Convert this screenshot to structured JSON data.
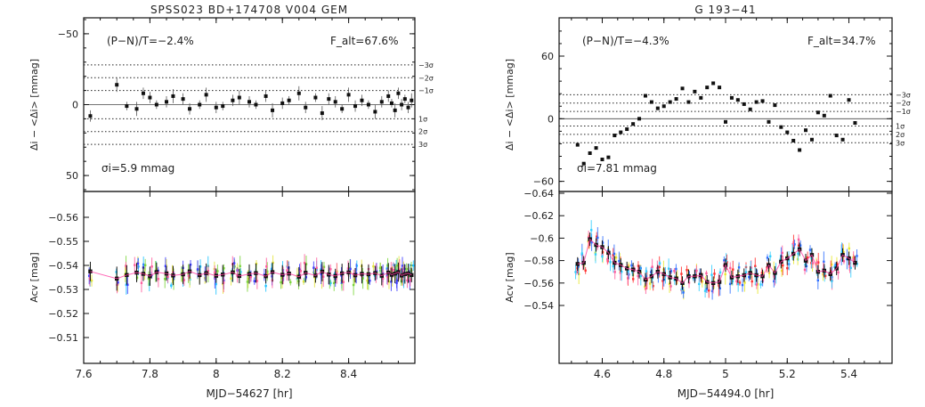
{
  "chart_data": [
    {
      "type": "scatter",
      "title": "SPSS023 BD+174708    V004    GEM",
      "top": {
        "ylabel": "Δi − <Δi> [mmag]",
        "ylim": [
          60,
          -60
        ],
        "yticks": [
          -50,
          0,
          50
        ],
        "ytick_labels": [
          "−50",
          "0",
          "50"
        ],
        "annotation_left": "(P−N)/T=−2.4%",
        "annotation_right": "F_alt=67.6%",
        "sigma_text": "σi=5.9 mmag",
        "sigma_levels": [
          {
            "label": "3σ",
            "value": 28
          },
          {
            "label": "2σ",
            "value": 19
          },
          {
            "label": "1σ",
            "value": 10
          },
          {
            "label": "−1σ",
            "value": -10
          },
          {
            "label": "−2σ",
            "value": -19
          },
          {
            "label": "−3σ",
            "value": -28
          }
        ],
        "values": [
          8,
          -14,
          1,
          3,
          -8,
          -5,
          0,
          -2,
          -6,
          -4,
          3,
          0,
          -7,
          2,
          1,
          -3,
          -5,
          -2,
          0,
          -6,
          4,
          -1,
          -3,
          -8,
          2,
          -5,
          6,
          -4,
          -2,
          3,
          -7,
          1,
          -3,
          0,
          5,
          -2,
          -6,
          -1,
          4,
          -8,
          0,
          -4,
          2,
          -3
        ],
        "errors": [
          4,
          5,
          3,
          5,
          4,
          4,
          3,
          4,
          5,
          4,
          4,
          3,
          5,
          4,
          3,
          4,
          5,
          4,
          3,
          4,
          5,
          4,
          3,
          5,
          4,
          3,
          5,
          4,
          4,
          3,
          5,
          4,
          4,
          3,
          5,
          4,
          4,
          3,
          5,
          4,
          4,
          3,
          4,
          5
        ]
      },
      "bottom": {
        "ylabel": "Acv [mag]",
        "ylim": [
          -0.5,
          -0.57
        ],
        "yticks": [
          -0.56,
          -0.55,
          -0.54,
          -0.53,
          -0.52,
          -0.51
        ],
        "ytick_labels": [
          "−0.56",
          "−0.55",
          "−0.54",
          "−0.53",
          "−0.52",
          "−0.51"
        ],
        "x": [
          7.62,
          7.7,
          7.73,
          7.76,
          7.78,
          7.8,
          7.82,
          7.85,
          7.87,
          7.9,
          7.92,
          7.95,
          7.97,
          8.0,
          8.02,
          8.05,
          8.07,
          8.1,
          8.12,
          8.15,
          8.17,
          8.2,
          8.22,
          8.25,
          8.27,
          8.3,
          8.32,
          8.34,
          8.36,
          8.38,
          8.4,
          8.42,
          8.44,
          8.46,
          8.48,
          8.5,
          8.52,
          8.53,
          8.54,
          8.55,
          8.56,
          8.57,
          8.58,
          8.59
        ],
        "values": [
          -0.5375,
          -0.5345,
          -0.536,
          -0.537,
          -0.5365,
          -0.5355,
          -0.5372,
          -0.5366,
          -0.5358,
          -0.5363,
          -0.5375,
          -0.536,
          -0.5368,
          -0.5357,
          -0.5362,
          -0.5371,
          -0.5356,
          -0.5364,
          -0.5368,
          -0.5355,
          -0.5372,
          -0.5361,
          -0.5366,
          -0.5353,
          -0.5369,
          -0.5358,
          -0.5374,
          -0.5362,
          -0.5356,
          -0.5367,
          -0.5371,
          -0.5359,
          -0.5365,
          -0.5363,
          -0.5368,
          -0.5357,
          -0.537,
          -0.5361,
          -0.5366,
          -0.5372,
          -0.5358,
          -0.5364,
          -0.5367,
          -0.536
        ],
        "errors": [
          0.004,
          0.005,
          0.004,
          0.004,
          0.003,
          0.004,
          0.004,
          0.003,
          0.004,
          0.004,
          0.003,
          0.004,
          0.004,
          0.003,
          0.004,
          0.004,
          0.003,
          0.004,
          0.004,
          0.003,
          0.004,
          0.004,
          0.003,
          0.004,
          0.004,
          0.003,
          0.004,
          0.004,
          0.003,
          0.004,
          0.004,
          0.003,
          0.004,
          0.004,
          0.003,
          0.004,
          0.004,
          0.003,
          0.004,
          0.004,
          0.003,
          0.004,
          0.004,
          0.003
        ]
      },
      "xlabel": "MJD−54627 [hr]",
      "xlim": [
        7.6,
        8.6
      ],
      "xticks": [
        7.6,
        7.8,
        8.0,
        8.2,
        8.4
      ],
      "xtick_labels": [
        "7.6",
        "7.8",
        "8",
        "8.2",
        "8.4"
      ],
      "comparison_colors": [
        "#22c4ff",
        "#e4e43c",
        "#7cd63c",
        "#3c3cff",
        "#ff5e9e"
      ]
    },
    {
      "type": "scatter",
      "title": "G 193−41",
      "top": {
        "ylabel": "Δi − <Δi> [mmag]",
        "ylim": [
          -68,
          95
        ],
        "yticks": [
          -60,
          0,
          60
        ],
        "ytick_labels": [
          "−60",
          "0",
          "60"
        ],
        "annotation_left": "(P−N)/T=−4.3%",
        "annotation_right": "F_alt=34.7%",
        "sigma_text": "σi=7.81 mmag",
        "sigma_levels": [
          {
            "label": "3σ",
            "value": -23
          },
          {
            "label": "2σ",
            "value": -15
          },
          {
            "label": "1σ",
            "value": -7
          },
          {
            "label": "−1σ",
            "value": 7
          },
          {
            "label": "−2σ",
            "value": 15
          },
          {
            "label": "−3σ",
            "value": 23
          }
        ],
        "values": [
          -25,
          -43,
          -33,
          -28,
          -39,
          -37,
          -16,
          -13,
          -10,
          -5,
          0,
          22,
          16,
          10,
          12,
          16,
          19,
          29,
          16,
          26,
          20,
          30,
          34,
          30,
          -3,
          20,
          18,
          14,
          9,
          16,
          17,
          -3,
          13,
          -8,
          -13,
          -21,
          -30,
          -11,
          -20,
          6,
          3,
          22,
          -16,
          -20,
          18,
          -4
        ],
        "errors": [
          1,
          1,
          1,
          1,
          1,
          1,
          1,
          1,
          1,
          1,
          1,
          1,
          1,
          1,
          1,
          1,
          1,
          1,
          1,
          1,
          1,
          1,
          1,
          1,
          1,
          1,
          1,
          1,
          1,
          1,
          1,
          1,
          1,
          1,
          1,
          1,
          1,
          1,
          1,
          1,
          1,
          1,
          1,
          1,
          1,
          1
        ]
      },
      "bottom": {
        "ylabel": "Acv [mag]",
        "ylim": [
          -0.49,
          -0.64
        ],
        "yticks": [
          -0.64,
          -0.62,
          -0.6,
          -0.58,
          -0.56,
          -0.54
        ],
        "ytick_labels": [
          "−0.64",
          "−0.62",
          "−0.6",
          "−0.58",
          "−0.56",
          "−0.54"
        ],
        "x": [
          4.52,
          4.54,
          4.56,
          4.58,
          4.6,
          4.62,
          4.64,
          4.66,
          4.68,
          4.7,
          4.72,
          4.74,
          4.76,
          4.78,
          4.8,
          4.82,
          4.84,
          4.86,
          4.88,
          4.9,
          4.92,
          4.94,
          4.96,
          4.98,
          5.0,
          5.02,
          5.04,
          5.06,
          5.08,
          5.1,
          5.12,
          5.14,
          5.16,
          5.18,
          5.2,
          5.22,
          5.24,
          5.26,
          5.28,
          5.3,
          5.32,
          5.34,
          5.36,
          5.38,
          5.4,
          5.42
        ],
        "values": [
          -0.577,
          -0.578,
          -0.599,
          -0.594,
          -0.592,
          -0.587,
          -0.578,
          -0.576,
          -0.573,
          -0.572,
          -0.57,
          -0.563,
          -0.566,
          -0.57,
          -0.568,
          -0.565,
          -0.564,
          -0.56,
          -0.566,
          -0.566,
          -0.567,
          -0.561,
          -0.56,
          -0.561,
          -0.576,
          -0.565,
          -0.566,
          -0.567,
          -0.569,
          -0.567,
          -0.566,
          -0.576,
          -0.569,
          -0.579,
          -0.582,
          -0.586,
          -0.59,
          -0.58,
          -0.585,
          -0.57,
          -0.571,
          -0.568,
          -0.573,
          -0.585,
          -0.582,
          -0.578
        ],
        "errors": [
          0.006,
          0.006,
          0.006,
          0.006,
          0.006,
          0.006,
          0.006,
          0.006,
          0.006,
          0.006,
          0.006,
          0.006,
          0.006,
          0.006,
          0.006,
          0.006,
          0.006,
          0.006,
          0.006,
          0.006,
          0.006,
          0.006,
          0.006,
          0.006,
          0.006,
          0.006,
          0.006,
          0.006,
          0.006,
          0.006,
          0.006,
          0.006,
          0.006,
          0.006,
          0.006,
          0.006,
          0.006,
          0.006,
          0.006,
          0.006,
          0.006,
          0.006,
          0.006,
          0.006,
          0.006,
          0.006
        ]
      },
      "xlabel": "MJD−54494.0 [hr]",
      "xlim": [
        4.46,
        5.54
      ],
      "xticks": [
        4.6,
        4.8,
        5.0,
        5.2,
        5.4
      ],
      "xtick_labels": [
        "4.6",
        "4.8",
        "5",
        "5.2",
        "5.4"
      ],
      "comparison_colors": [
        "#e8e82e",
        "#ff3030",
        "#2e6eff",
        "#ff5e9e",
        "#33d0ff"
      ]
    }
  ]
}
